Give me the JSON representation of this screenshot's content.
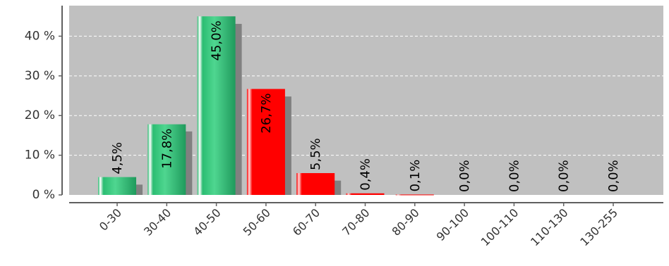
{
  "chart_data": {
    "type": "bar",
    "categories": [
      "0-30",
      "30-40",
      "40-50",
      "50-60",
      "60-70",
      "70-80",
      "80-90",
      "90-100",
      "100-110",
      "110-130",
      "130-255"
    ],
    "values": [
      4.5,
      17.8,
      45.0,
      26.7,
      5.5,
      0.4,
      0.1,
      0.0,
      0.0,
      0.0,
      0.0
    ],
    "data_labels": [
      "4,5%",
      "17,8%",
      "45,0%",
      "26,7%",
      "5,5%",
      "0,4%",
      "0,1%",
      "0,0%",
      "0,0%",
      "0,0%",
      "0,0%"
    ],
    "shadow_values": [
      2.6,
      16.0,
      43.1,
      24.8,
      3.6,
      0,
      0,
      0,
      0,
      0,
      0
    ],
    "bar_colors": [
      "green",
      "green",
      "green",
      "red",
      "red",
      "red",
      "red",
      "red",
      "red",
      "red",
      "red"
    ],
    "y_ticks": [
      0,
      10,
      20,
      30,
      40
    ],
    "y_tick_labels": [
      "0 %",
      "10 %",
      "20 %",
      "30 %",
      "40 %"
    ],
    "ylim": [
      0,
      47.7
    ],
    "grid": true,
    "legend": "none",
    "title": "",
    "xlabel": "",
    "ylabel": ""
  },
  "colors": {
    "plot_background": "#c0c0c0",
    "gridline": "#ffffff",
    "shadow": "#808080",
    "green_light": "#6fe0a6",
    "green_mid": "#2bbd72",
    "green_dark": "#1f8f55",
    "red": "#ff0000",
    "red_highlight": "#ffd0d0",
    "axis": "#606060"
  }
}
